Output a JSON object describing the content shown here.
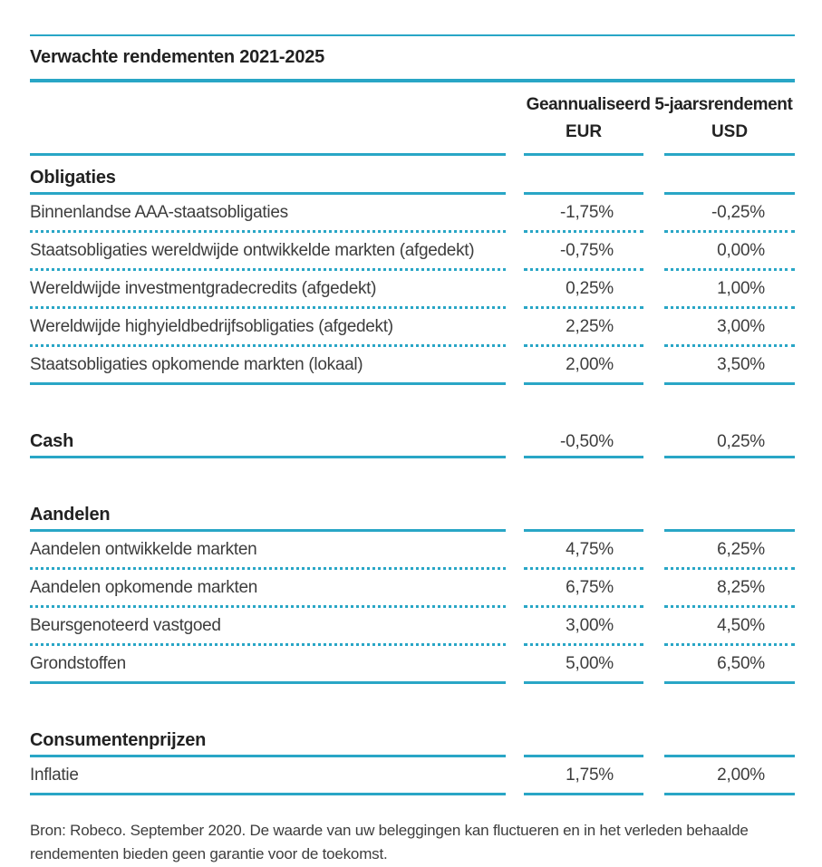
{
  "title": "Verwachte rendementen 2021-2025",
  "header": {
    "group_label": "Geannualiseerd 5-jaarsrendement",
    "col_eur": "EUR",
    "col_usd": "USD"
  },
  "sections": [
    {
      "label": "Obligaties",
      "values": null,
      "rows": [
        {
          "label": "Binnenlandse AAA-staatsobligaties",
          "eur": "-1,75%",
          "usd": "-0,25%"
        },
        {
          "label": "Staatsobligaties wereldwijde ontwikkelde markten (afgedekt)",
          "eur": "-0,75%",
          "usd": "0,00%"
        },
        {
          "label": "Wereldwijde investmentgradecredits (afgedekt)",
          "eur": "0,25%",
          "usd": "1,00%"
        },
        {
          "label": "Wereldwijde highyieldbedrijfsobligaties (afgedekt)",
          "eur": "2,25%",
          "usd": "3,00%"
        },
        {
          "label": "Staatsobligaties opkomende markten (lokaal)",
          "eur": "2,00%",
          "usd": "3,50%"
        }
      ]
    },
    {
      "label": "Cash",
      "values": {
        "eur": "-0,50%",
        "usd": "0,25%"
      },
      "rows": []
    },
    {
      "label": "Aandelen",
      "values": null,
      "rows": [
        {
          "label": "Aandelen ontwikkelde markten",
          "eur": "4,75%",
          "usd": "6,25%"
        },
        {
          "label": "Aandelen opkomende markten",
          "eur": "6,75%",
          "usd": "8,25%"
        },
        {
          "label": "Beursgenoteerd vastgoed",
          "eur": "3,00%",
          "usd": "4,50%"
        },
        {
          "label": "Grondstoffen",
          "eur": "5,00%",
          "usd": "6,50%"
        }
      ]
    },
    {
      "label": "Consumentenprijzen",
      "values": null,
      "rows": [
        {
          "label": "Inflatie",
          "eur": "1,75%",
          "usd": "2,00%"
        }
      ]
    }
  ],
  "footnote": "Bron: Robeco. September 2020. De waarde van uw beleggingen kan fluctueren en in het verleden behaalde rendementen bieden geen garantie voor de toekomst.",
  "colors": {
    "accent_teal": "#29a6c6",
    "heading_text": "#222222",
    "body_text": "#3d3d3d"
  }
}
